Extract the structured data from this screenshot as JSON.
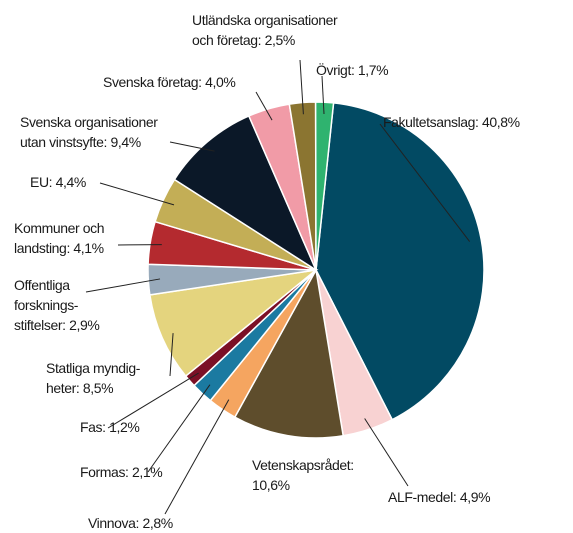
{
  "chart_data": {
    "type": "pie",
    "values": [
      40.8,
      4.9,
      10.6,
      2.8,
      2.1,
      1.2,
      8.5,
      2.9,
      4.1,
      4.4,
      9.4,
      4.0,
      2.5,
      1.7
    ],
    "value_labels": [
      "Fakultetsanslag: 40,8%",
      "ALF-medel: 4,9%",
      "Vetenskapsrådet:\n10,6%",
      "Vinnova: 2,8%",
      "Formas: 2,1%",
      "Fas: 1,2%",
      "Statliga myndig-\nheter: 8,5%",
      "Offentliga\nforsknings-\nstiftelser: 2,9%",
      "Kommuner och\nlandsting: 4,1%",
      "EU: 4,4%",
      "Svenska organisationer\nutan vinstsyfte: 9,4%",
      "Svenska företag: 4,0%",
      "Utländska organisationer\noch företag: 2,5%",
      "Övrigt: 1,7%"
    ],
    "colors": [
      "#024a63",
      "#f8d2d2",
      "#5e4d2c",
      "#f5a560",
      "#1b7aa1",
      "#7b1026",
      "#e4d47e",
      "#98aabb",
      "#b42a2f",
      "#c3ae56",
      "#0b1828",
      "#f19ba7",
      "#8b7531",
      "#2fb36f"
    ]
  }
}
